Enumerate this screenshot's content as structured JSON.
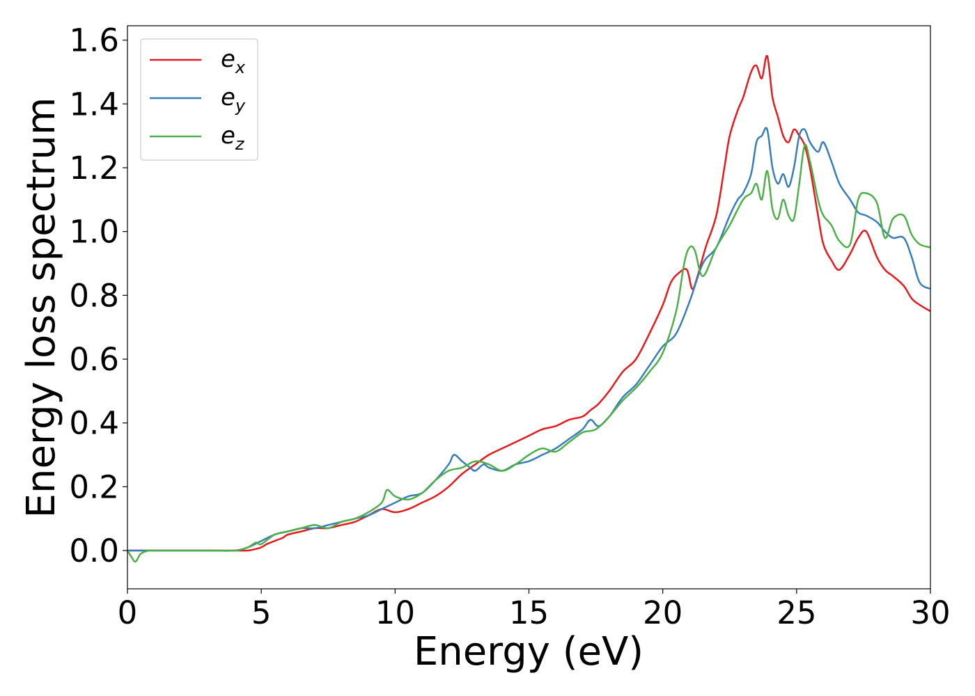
{
  "chart_data": {
    "type": "line",
    "xlabel": "Energy (eV)",
    "ylabel": "Energy loss spectrum",
    "xlim": [
      0,
      30
    ],
    "ylim": [
      -0.12,
      1.645
    ],
    "x_ticks": [
      0,
      5,
      10,
      15,
      20,
      25,
      30
    ],
    "x_tick_labels": [
      "0",
      "5",
      "10",
      "15",
      "20",
      "25",
      "30"
    ],
    "y_ticks": [
      0.0,
      0.2,
      0.4,
      0.6,
      0.8,
      1.0,
      1.2,
      1.4,
      1.6
    ],
    "y_tick_labels": [
      "0.0",
      "0.2",
      "0.4",
      "0.6",
      "0.8",
      "1.0",
      "1.2",
      "1.4",
      "1.6"
    ],
    "grid": false,
    "legend_position": "top-left",
    "series": [
      {
        "name": "e_x",
        "legend_main": "e",
        "legend_sub": "x",
        "color": "#e41a1c",
        "x": [
          0,
          0.5,
          1,
          2,
          3,
          4,
          4.5,
          4.8,
          5.0,
          5.2,
          5.5,
          5.8,
          6.0,
          6.5,
          7.0,
          7.5,
          8.0,
          8.5,
          9.0,
          9.5,
          10.0,
          10.5,
          11.0,
          11.5,
          12.0,
          12.5,
          13.0,
          13.5,
          14.0,
          14.5,
          15.0,
          15.5,
          16.0,
          16.5,
          17.0,
          17.3,
          17.6,
          18.0,
          18.5,
          19.0,
          19.5,
          20.0,
          20.3,
          20.6,
          20.9,
          21.1,
          21.3,
          21.6,
          22.0,
          22.3,
          22.5,
          22.8,
          23.0,
          23.3,
          23.5,
          23.7,
          23.9,
          24.1,
          24.3,
          24.5,
          24.7,
          24.9,
          25.1,
          25.3,
          25.5,
          25.8,
          26.0,
          26.3,
          26.6,
          27.0,
          27.3,
          27.6,
          28.0,
          28.3,
          28.6,
          29.0,
          29.3,
          29.6,
          30.0
        ],
        "y": [
          0.0,
          0.0,
          0.0,
          0.0,
          0.0,
          0.0,
          0.0,
          0.005,
          0.01,
          0.02,
          0.03,
          0.04,
          0.05,
          0.06,
          0.07,
          0.07,
          0.08,
          0.09,
          0.11,
          0.13,
          0.12,
          0.13,
          0.15,
          0.17,
          0.2,
          0.24,
          0.27,
          0.3,
          0.32,
          0.34,
          0.36,
          0.38,
          0.39,
          0.41,
          0.42,
          0.44,
          0.46,
          0.5,
          0.56,
          0.6,
          0.68,
          0.77,
          0.84,
          0.87,
          0.88,
          0.82,
          0.86,
          0.95,
          1.05,
          1.2,
          1.3,
          1.38,
          1.42,
          1.5,
          1.52,
          1.48,
          1.55,
          1.42,
          1.36,
          1.3,
          1.28,
          1.32,
          1.3,
          1.27,
          1.2,
          1.05,
          0.96,
          0.91,
          0.88,
          0.93,
          0.98,
          1.0,
          0.92,
          0.88,
          0.86,
          0.83,
          0.79,
          0.77,
          0.75
        ]
      },
      {
        "name": "e_y",
        "legend_main": "e",
        "legend_sub": "y",
        "color": "#377eb8",
        "x": [
          0,
          0.5,
          1,
          2,
          3,
          4,
          4.5,
          5.0,
          5.5,
          6.0,
          6.5,
          7.0,
          7.5,
          8.0,
          8.5,
          9.0,
          9.5,
          10.0,
          10.5,
          11.0,
          11.5,
          12.0,
          12.2,
          12.5,
          12.8,
          13.0,
          13.3,
          13.5,
          14.0,
          14.5,
          15.0,
          15.5,
          16.0,
          16.5,
          17.0,
          17.3,
          17.6,
          18.0,
          18.5,
          19.0,
          19.5,
          20.0,
          20.5,
          21.0,
          21.5,
          22.0,
          22.5,
          22.8,
          23.0,
          23.3,
          23.5,
          23.7,
          23.9,
          24.1,
          24.3,
          24.5,
          24.7,
          24.9,
          25.1,
          25.3,
          25.5,
          25.8,
          26.0,
          26.3,
          26.6,
          27.0,
          27.3,
          27.6,
          28.0,
          28.3,
          28.6,
          29.0,
          29.3,
          29.6,
          30.0
        ],
        "y": [
          0.0,
          0.0,
          0.0,
          0.0,
          0.0,
          0.0,
          0.01,
          0.03,
          0.05,
          0.06,
          0.07,
          0.07,
          0.08,
          0.09,
          0.1,
          0.11,
          0.13,
          0.15,
          0.17,
          0.18,
          0.22,
          0.27,
          0.3,
          0.28,
          0.26,
          0.25,
          0.27,
          0.26,
          0.25,
          0.27,
          0.28,
          0.3,
          0.32,
          0.35,
          0.38,
          0.41,
          0.39,
          0.42,
          0.48,
          0.52,
          0.58,
          0.64,
          0.68,
          0.78,
          0.9,
          0.95,
          1.05,
          1.1,
          1.12,
          1.18,
          1.28,
          1.3,
          1.32,
          1.2,
          1.15,
          1.18,
          1.14,
          1.2,
          1.3,
          1.32,
          1.28,
          1.25,
          1.28,
          1.22,
          1.15,
          1.1,
          1.06,
          1.05,
          1.03,
          1.0,
          0.98,
          0.98,
          0.92,
          0.84,
          0.82
        ]
      },
      {
        "name": "e_z",
        "legend_main": "e",
        "legend_sub": "z",
        "color": "#4daf4a",
        "x": [
          0,
          0.15,
          0.3,
          0.5,
          0.8,
          1,
          2,
          3,
          4,
          4.5,
          4.8,
          5.0,
          5.5,
          6.0,
          6.5,
          7.0,
          7.5,
          8.0,
          8.5,
          9.0,
          9.5,
          9.7,
          10.0,
          10.5,
          11.0,
          11.5,
          12.0,
          12.5,
          13.0,
          13.5,
          14.0,
          14.5,
          15.0,
          15.5,
          16.0,
          16.5,
          17.0,
          17.5,
          18.0,
          18.5,
          19.0,
          19.5,
          20.0,
          20.5,
          20.8,
          21.0,
          21.2,
          21.5,
          22.0,
          22.5,
          23.0,
          23.3,
          23.5,
          23.7,
          23.9,
          24.1,
          24.3,
          24.5,
          24.7,
          24.9,
          25.1,
          25.3,
          25.5,
          25.8,
          26.0,
          26.3,
          26.6,
          27.0,
          27.3,
          27.6,
          28.0,
          28.3,
          28.6,
          29.0,
          29.3,
          29.6,
          30.0
        ],
        "y": [
          0.0,
          -0.02,
          -0.035,
          -0.01,
          0.0,
          0.0,
          0.0,
          0.0,
          0.0,
          0.01,
          0.025,
          0.02,
          0.05,
          0.06,
          0.07,
          0.08,
          0.07,
          0.09,
          0.1,
          0.12,
          0.15,
          0.19,
          0.17,
          0.16,
          0.18,
          0.22,
          0.25,
          0.26,
          0.28,
          0.27,
          0.25,
          0.27,
          0.3,
          0.32,
          0.31,
          0.34,
          0.37,
          0.38,
          0.42,
          0.47,
          0.51,
          0.56,
          0.62,
          0.75,
          0.9,
          0.95,
          0.94,
          0.86,
          0.95,
          1.02,
          1.1,
          1.12,
          1.15,
          1.1,
          1.19,
          1.07,
          1.04,
          1.1,
          1.05,
          1.04,
          1.15,
          1.27,
          1.22,
          1.1,
          1.05,
          1.02,
          0.97,
          0.96,
          1.1,
          1.12,
          1.09,
          0.98,
          1.04,
          1.05,
          0.99,
          0.96,
          0.95
        ]
      }
    ]
  }
}
